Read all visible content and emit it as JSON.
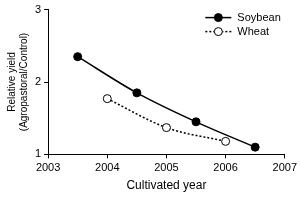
{
  "chart_data": {
    "type": "line",
    "x_label": "Cultivated year",
    "y_label": [
      "Relative yield",
      "(Agropastoral/Control)"
    ],
    "xlim": [
      2003,
      2007
    ],
    "xticks": [
      2003,
      2004,
      2005,
      2006,
      2007
    ],
    "ylim": [
      1,
      3
    ],
    "yticks": [
      1,
      2,
      3
    ],
    "grid": false,
    "legend": "top-right",
    "series": [
      {
        "name": "Soybean",
        "color": "#000000",
        "marker": "filled_circle",
        "line_style": "solid",
        "x": [
          2003.5,
          2004.5,
          2005.5,
          2006.5
        ],
        "values": [
          2.35,
          1.85,
          1.45,
          1.1
        ]
      },
      {
        "name": "Wheat",
        "color": "#000000",
        "marker": "open_circle",
        "line_style": "dotted",
        "x": [
          2004,
          2005,
          2006
        ],
        "values": [
          1.77,
          1.37,
          1.18
        ]
      }
    ]
  }
}
